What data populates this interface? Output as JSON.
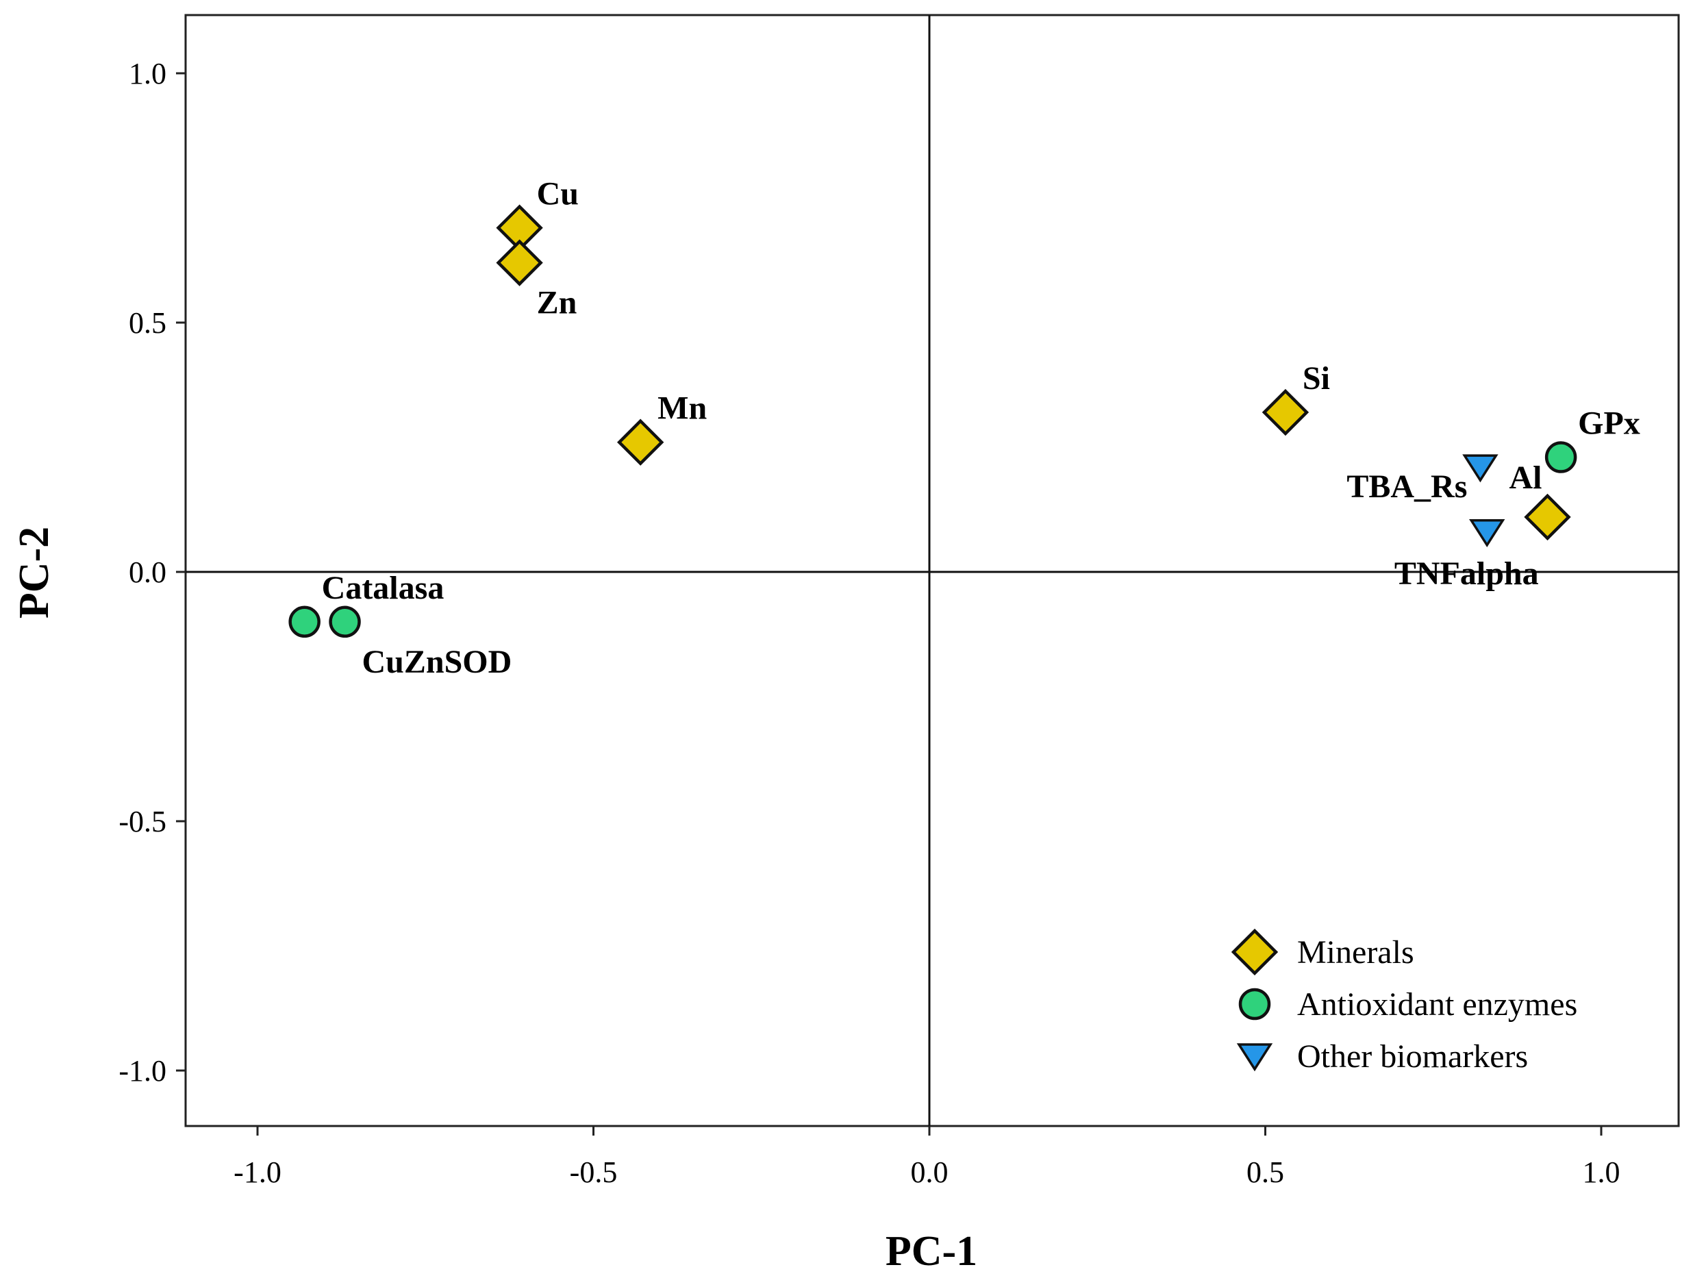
{
  "chart_data": {
    "type": "scatter",
    "title": "",
    "xlabel": "PC-1",
    "ylabel": "PC-2",
    "xlim": [
      -1.1,
      1.1
    ],
    "ylim": [
      -1.11,
      1.11
    ],
    "xticks": [
      -1.0,
      -0.5,
      0.0,
      0.5,
      1.0
    ],
    "xtick_labels": [
      "-1.0",
      "-0.5",
      "0.0",
      "0.5",
      "1.0"
    ],
    "yticks": [
      1.0,
      0.5,
      0.0,
      -0.5,
      -1.0
    ],
    "ytick_labels": [
      "1.0",
      "0.5",
      "0.0",
      "-0.5",
      "-1.0"
    ],
    "reference_lines": {
      "x": 0.0,
      "y": 0.0
    },
    "grid": false,
    "legend_position": "bottom-right",
    "groups": [
      {
        "name": "Minerals",
        "marker": "diamond",
        "color": "#e6c800"
      },
      {
        "name": "Antioxidant enzymes",
        "marker": "circle",
        "color": "#2fd27c"
      },
      {
        "name": "Other biomarkers",
        "marker": "triangle-down",
        "color": "#2596e8"
      }
    ],
    "points": [
      {
        "label": "Cu",
        "group": "Minerals",
        "x": -0.61,
        "y": 0.69,
        "label_pos": "above-right"
      },
      {
        "label": "Zn",
        "group": "Minerals",
        "x": -0.61,
        "y": 0.62,
        "label_pos": "below-right"
      },
      {
        "label": "Mn",
        "group": "Minerals",
        "x": -0.43,
        "y": 0.26,
        "label_pos": "above-right"
      },
      {
        "label": "Si",
        "group": "Minerals",
        "x": 0.53,
        "y": 0.32,
        "label_pos": "above-right"
      },
      {
        "label": "Al",
        "group": "Minerals",
        "x": 0.92,
        "y": 0.11,
        "label_pos": "above-left"
      },
      {
        "label": "Catalasa",
        "group": "Antioxidant enzymes",
        "x": -0.93,
        "y": -0.1,
        "label_pos": "above-right"
      },
      {
        "label": "CuZnSOD",
        "group": "Antioxidant enzymes",
        "x": -0.87,
        "y": -0.1,
        "label_pos": "below-right"
      },
      {
        "label": "GPx",
        "group": "Antioxidant enzymes",
        "x": 0.94,
        "y": 0.23,
        "label_pos": "above-right"
      },
      {
        "label": "TBA_Rs",
        "group": "Other biomarkers",
        "x": 0.82,
        "y": 0.21,
        "label_pos": "below-left"
      },
      {
        "label": "TNFalpha",
        "group": "Other biomarkers",
        "x": 0.83,
        "y": 0.08,
        "label_pos": "below"
      }
    ]
  }
}
